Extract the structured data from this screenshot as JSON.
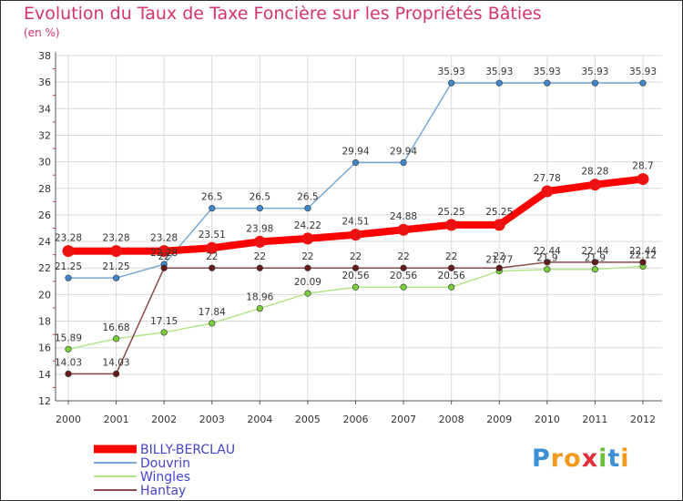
{
  "chart_data": {
    "type": "line",
    "title": "Evolution du Taux de Taxe Foncière sur les Propriétés Bâties",
    "ylabel": "(en %)",
    "xlabel": "",
    "x": [
      "2000",
      "2001",
      "2002",
      "2003",
      "2004",
      "2005",
      "2006",
      "2007",
      "2008",
      "2009",
      "2010",
      "2011",
      "2012"
    ],
    "ylim": [
      12,
      38
    ],
    "yticks": [
      "12",
      "14",
      "16",
      "18",
      "20",
      "22",
      "24",
      "26",
      "28",
      "30",
      "32",
      "34",
      "36",
      "38"
    ],
    "grid": true,
    "legend_position": "bottom-left",
    "series": [
      {
        "name": "BILLY-BERCLAU",
        "color": "#ff0000",
        "marker_color": "#ee1111",
        "emphasis": true,
        "values": [
          23.28,
          23.28,
          23.28,
          23.51,
          23.98,
          24.22,
          24.51,
          24.88,
          25.25,
          25.25,
          27.78,
          28.28,
          28.7
        ],
        "labels": [
          "23.28",
          "23.28",
          "23.28",
          "23.51",
          "23.98",
          "24.22",
          "24.51",
          "24.88",
          "25.25",
          "25.25",
          "27.78",
          "28.28",
          "28.7"
        ]
      },
      {
        "name": "Douvrin",
        "color": "#7aa9d4",
        "marker_color": "#3f88cc",
        "emphasis": false,
        "values": [
          21.25,
          21.25,
          22.28,
          26.5,
          26.5,
          26.5,
          29.94,
          29.94,
          35.93,
          35.93,
          35.93,
          35.93,
          35.93
        ],
        "labels": [
          "21.25",
          "21.25",
          "22.28",
          "26.5",
          "26.5",
          "26.5",
          "29.94",
          "29.94",
          "35.93",
          "35.93",
          "35.93",
          "35.93",
          "35.93"
        ]
      },
      {
        "name": "Wingles",
        "color": "#b2e68a",
        "marker_color": "#7acc3c",
        "emphasis": false,
        "values": [
          15.89,
          16.68,
          17.15,
          17.84,
          18.96,
          20.09,
          20.56,
          20.56,
          20.56,
          21.77,
          21.9,
          21.9,
          22.12
        ],
        "labels": [
          "15.89",
          "16.68",
          "17.15",
          "17.84",
          "18.96",
          "20.09",
          "20.56",
          "20.56",
          "20.56",
          "21.77",
          "21.9",
          "21.9",
          "22.12"
        ]
      },
      {
        "name": "Hantay",
        "color": "#8a4a4a",
        "marker_color": "#661a1a",
        "emphasis": false,
        "values": [
          14.03,
          14.03,
          22,
          22,
          22,
          22,
          22,
          22,
          22,
          22,
          22.44,
          22.44,
          22.44
        ],
        "labels": [
          "14.03",
          "14.03",
          "22",
          "22",
          "22",
          "22",
          "22",
          "22",
          "22",
          "22",
          "22.44",
          "22.44",
          "22.44"
        ]
      }
    ]
  },
  "brand": {
    "letters": [
      "P",
      "r",
      "o",
      "x",
      "i",
      "t",
      "i"
    ],
    "colors": [
      "#3d8fd6",
      "#f29a1e",
      "#f29a1e",
      "#e0303a",
      "#6cbf3a",
      "#3d8fd6",
      "#f29a1e"
    ]
  }
}
